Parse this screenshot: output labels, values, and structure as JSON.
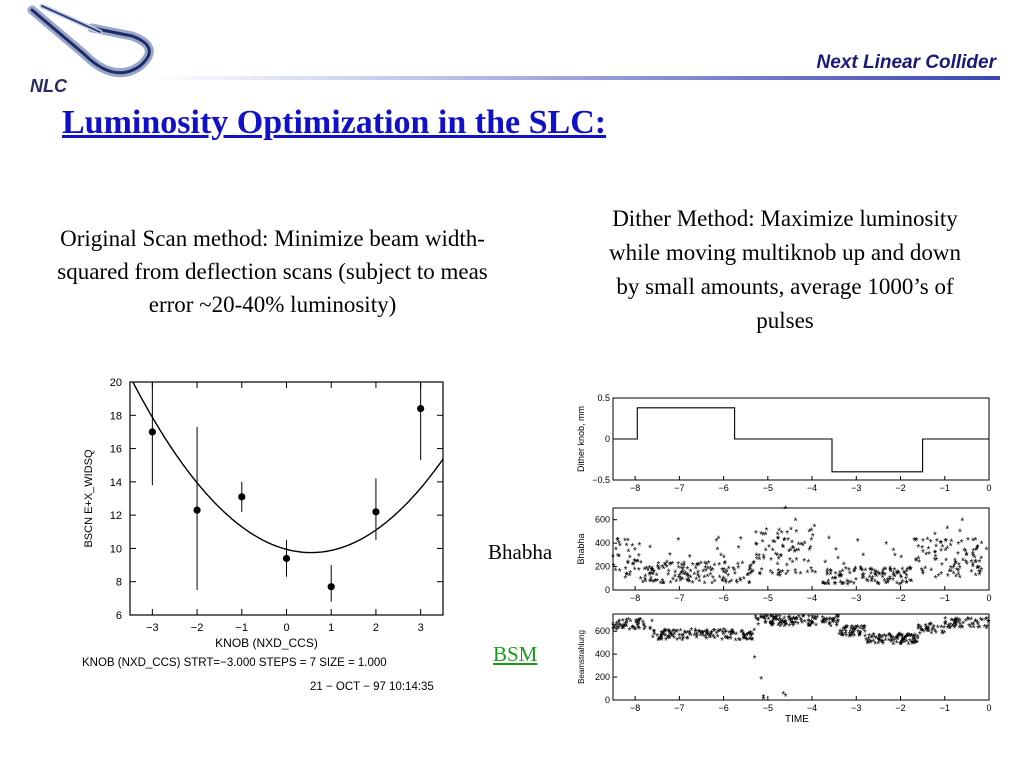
{
  "header": {
    "title": "Next Linear Collider",
    "logo_text": "NLC"
  },
  "slide": {
    "title": "Luminosity Optimization in the SLC:",
    "left_caption": "Original Scan method:  Minimize beam width-squared from deflection scans (subject to meas error  ~20-40% luminosity)",
    "right_caption": "Dither Method:  Maximize luminosity while moving multiknob up and down by small amounts, average 1000’s of pulses",
    "label_bhabha": "Bhabha",
    "label_bsm": "BSM"
  },
  "colors": {
    "title": "#1010c8",
    "header": "#1a1a7a",
    "bsm_label": "#1a9a1a"
  },
  "chart_data": [
    {
      "type": "scatter",
      "xlabel": "KNOB  (NXD_CCS)",
      "ylabel": "BSCN E+X_WIDSQ",
      "xlim": [
        -3.5,
        3.5
      ],
      "ylim": [
        6,
        20
      ],
      "xticks": [
        -3,
        -2,
        -1,
        0,
        1,
        2,
        3
      ],
      "yticks": [
        6,
        8,
        10,
        12,
        14,
        16,
        18,
        20
      ],
      "points": [
        {
          "x": -3,
          "y": 17.0,
          "err_lo": 13.8,
          "err_hi": 20.0
        },
        {
          "x": -2,
          "y": 12.3,
          "err_lo": 7.5,
          "err_hi": 17.3
        },
        {
          "x": -1,
          "y": 13.1,
          "err_lo": 12.2,
          "err_hi": 14.0
        },
        {
          "x": 0,
          "y": 9.4,
          "err_lo": 8.3,
          "err_hi": 10.5
        },
        {
          "x": 1,
          "y": 7.7,
          "err_lo": 6.8,
          "err_hi": 9.0
        },
        {
          "x": 2,
          "y": 12.2,
          "err_lo": 10.5,
          "err_hi": 14.2
        },
        {
          "x": 3,
          "y": 18.4,
          "err_lo": 15.3,
          "err_hi": 20.0
        }
      ],
      "fit": {
        "type": "parabola",
        "a": 0.645,
        "x0": 0.55,
        "y0": 9.75
      },
      "footer_line1": "KNOB  (NXD_CCS)  STRT=−3.000    STEPS = 7    SIZE = 1.000",
      "footer_line2": "21 − OCT − 97  10:14:35"
    },
    {
      "type": "line",
      "ylabel": "Dither knob, mm",
      "xlim": [
        -8.5,
        0
      ],
      "ylim": [
        -0.5,
        0.5
      ],
      "xticks": [
        -8,
        -7,
        -6,
        -5,
        -4,
        -3,
        -2,
        -1,
        0
      ],
      "yticks": [
        -0.5,
        0,
        0.5
      ],
      "ytick_labels": [
        "−0.5",
        "0",
        "0.5"
      ],
      "steps": [
        [
          -8.5,
          0
        ],
        [
          -7.95,
          0
        ],
        [
          -7.95,
          0.38
        ],
        [
          -5.75,
          0.38
        ],
        [
          -5.75,
          0
        ],
        [
          -3.55,
          0
        ],
        [
          -3.55,
          -0.4
        ],
        [
          -1.5,
          -0.4
        ],
        [
          -1.5,
          0
        ],
        [
          0,
          0
        ]
      ]
    },
    {
      "type": "scatter",
      "ylabel": "Bhabha",
      "xlim": [
        -8.5,
        0
      ],
      "ylim": [
        0,
        700
      ],
      "xticks": [
        -8,
        -7,
        -6,
        -5,
        -4,
        -3,
        -2,
        -1,
        0
      ],
      "yticks": [
        0,
        200,
        400,
        600
      ],
      "marker": "*"
    },
    {
      "type": "scatter",
      "xlabel": "TIME",
      "ylabel": "Beamstrahlung",
      "xlim": [
        -8.5,
        0
      ],
      "ylim": [
        0,
        750
      ],
      "xticks": [
        -8,
        -7,
        -6,
        -5,
        -4,
        -3,
        -2,
        -1,
        0
      ],
      "yticks": [
        0,
        200,
        400,
        600
      ],
      "marker": "*",
      "outliers": [
        {
          "x": -5.3,
          "y": 360
        },
        {
          "x": -5.15,
          "y": 180
        },
        {
          "x": -5.1,
          "y": 20
        },
        {
          "x": -5.1,
          "y": 5
        },
        {
          "x": -4.65,
          "y": 50
        },
        {
          "x": -4.6,
          "y": 30
        }
      ]
    }
  ]
}
